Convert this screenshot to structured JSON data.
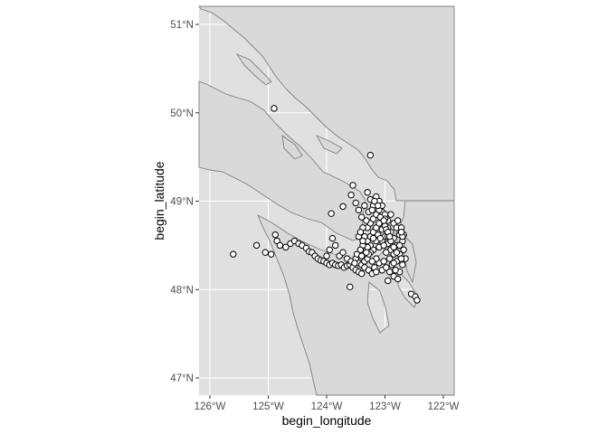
{
  "chart_data": {
    "type": "scatter",
    "xlabel": "begin_longitude",
    "ylabel": "begin_latitude",
    "xlim": [
      -126.2,
      -121.8
    ],
    "ylim": [
      46.8,
      51.2
    ],
    "x_ticks": [
      {
        "value": -126,
        "label": "126°W"
      },
      {
        "value": -125,
        "label": "125°W"
      },
      {
        "value": -124,
        "label": "124°W"
      },
      {
        "value": -123,
        "label": "123°W"
      },
      {
        "value": -122,
        "label": "122°W"
      }
    ],
    "y_ticks": [
      {
        "value": 47,
        "label": "47°N"
      },
      {
        "value": 48,
        "label": "48°N"
      },
      {
        "value": 49,
        "label": "49°N"
      },
      {
        "value": 50,
        "label": "50°N"
      },
      {
        "value": 51,
        "label": "51°N"
      }
    ],
    "grid": true,
    "basemap": "coastline outlines, grey land polygons",
    "points": [
      [
        -124.9,
        50.05
      ],
      [
        -123.25,
        49.52
      ],
      [
        -123.55,
        49.18
      ],
      [
        -125.6,
        48.4
      ],
      [
        -125.2,
        48.5
      ],
      [
        -125.05,
        48.42
      ],
      [
        -124.95,
        48.4
      ],
      [
        -124.88,
        48.62
      ],
      [
        -124.85,
        48.55
      ],
      [
        -124.8,
        48.5
      ],
      [
        -124.7,
        48.48
      ],
      [
        -124.62,
        48.52
      ],
      [
        -124.55,
        48.55
      ],
      [
        -124.48,
        48.52
      ],
      [
        -124.42,
        48.5
      ],
      [
        -124.35,
        48.47
      ],
      [
        -124.3,
        48.43
      ],
      [
        -124.25,
        48.42
      ],
      [
        -124.2,
        48.38
      ],
      [
        -124.15,
        48.35
      ],
      [
        -124.1,
        48.33
      ],
      [
        -124.05,
        48.32
      ],
      [
        -124.0,
        48.3
      ],
      [
        -123.95,
        48.28
      ],
      [
        -123.9,
        48.3
      ],
      [
        -123.85,
        48.28
      ],
      [
        -123.8,
        48.27
      ],
      [
        -123.75,
        48.28
      ],
      [
        -123.7,
        48.25
      ],
      [
        -123.65,
        48.27
      ],
      [
        -123.6,
        48.28
      ],
      [
        -123.55,
        48.25
      ],
      [
        -123.5,
        48.22
      ],
      [
        -123.45,
        48.2
      ],
      [
        -123.4,
        48.18
      ],
      [
        -123.6,
        48.03
      ],
      [
        -124.0,
        48.38
      ],
      [
        -123.95,
        48.45
      ],
      [
        -123.9,
        48.58
      ],
      [
        -123.85,
        48.5
      ],
      [
        -123.78,
        48.38
      ],
      [
        -123.72,
        48.42
      ],
      [
        -123.65,
        48.35
      ],
      [
        -123.58,
        48.32
      ],
      [
        -123.5,
        48.35
      ],
      [
        -123.45,
        48.3
      ],
      [
        -123.4,
        48.28
      ],
      [
        -123.35,
        48.32
      ],
      [
        -123.3,
        48.35
      ],
      [
        -123.92,
        48.86
      ],
      [
        -123.72,
        48.94
      ],
      [
        -123.58,
        49.07
      ],
      [
        -123.5,
        48.98
      ],
      [
        -123.45,
        48.9
      ],
      [
        -123.4,
        48.82
      ],
      [
        -123.35,
        48.95
      ],
      [
        -123.3,
        49.1
      ],
      [
        -123.25,
        49.02
      ],
      [
        -123.2,
        48.95
      ],
      [
        -123.15,
        49.05
      ],
      [
        -123.1,
        49.0
      ],
      [
        -123.05,
        48.88
      ],
      [
        -123.0,
        48.85
      ],
      [
        -122.95,
        48.78
      ],
      [
        -122.9,
        48.85
      ],
      [
        -122.85,
        48.75
      ],
      [
        -122.8,
        48.7
      ],
      [
        -122.75,
        48.62
      ],
      [
        -122.7,
        48.55
      ],
      [
        -122.68,
        48.45
      ],
      [
        -122.65,
        48.35
      ],
      [
        -122.7,
        48.28
      ],
      [
        -122.75,
        48.2
      ],
      [
        -122.85,
        48.15
      ],
      [
        -122.95,
        48.1
      ],
      [
        -123.05,
        48.22
      ],
      [
        -123.1,
        48.3
      ],
      [
        -123.15,
        48.35
      ],
      [
        -123.2,
        48.45
      ],
      [
        -123.25,
        48.5
      ],
      [
        -123.3,
        48.55
      ],
      [
        -123.25,
        48.6
      ],
      [
        -123.2,
        48.65
      ],
      [
        -123.15,
        48.7
      ],
      [
        -123.1,
        48.75
      ],
      [
        -123.05,
        48.68
      ],
      [
        -123.0,
        48.6
      ],
      [
        -122.95,
        48.52
      ],
      [
        -122.9,
        48.45
      ],
      [
        -122.85,
        48.4
      ],
      [
        -122.8,
        48.32
      ],
      [
        -122.75,
        48.4
      ],
      [
        -122.8,
        48.5
      ],
      [
        -122.85,
        48.58
      ],
      [
        -122.9,
        48.65
      ],
      [
        -122.95,
        48.7
      ],
      [
        -123.0,
        48.72
      ],
      [
        -123.05,
        48.55
      ],
      [
        -123.1,
        48.48
      ],
      [
        -123.15,
        48.55
      ],
      [
        -123.2,
        48.58
      ],
      [
        -123.25,
        48.42
      ],
      [
        -123.3,
        48.48
      ],
      [
        -123.35,
        48.6
      ],
      [
        -123.3,
        48.7
      ],
      [
        -123.25,
        48.75
      ],
      [
        -123.2,
        48.8
      ],
      [
        -123.15,
        48.85
      ],
      [
        -123.1,
        48.9
      ],
      [
        -123.05,
        48.95
      ],
      [
        -123.0,
        48.8
      ],
      [
        -122.95,
        48.6
      ],
      [
        -122.9,
        48.55
      ],
      [
        -122.85,
        48.48
      ],
      [
        -122.8,
        48.42
      ],
      [
        -122.72,
        48.35
      ],
      [
        -122.68,
        48.62
      ],
      [
        -122.72,
        48.7
      ],
      [
        -122.78,
        48.78
      ],
      [
        -123.12,
        48.62
      ],
      [
        -123.08,
        48.58
      ],
      [
        -123.02,
        48.5
      ],
      [
        -122.98,
        48.42
      ],
      [
        -122.92,
        48.35
      ],
      [
        -122.88,
        48.28
      ],
      [
        -122.82,
        48.22
      ],
      [
        -122.78,
        48.12
      ],
      [
        -123.18,
        48.25
      ],
      [
        -123.22,
        48.32
      ],
      [
        -123.28,
        48.4
      ],
      [
        -123.32,
        48.42
      ],
      [
        -123.38,
        48.5
      ],
      [
        -123.42,
        48.45
      ],
      [
        -123.48,
        48.4
      ],
      [
        -123.52,
        48.3
      ],
      [
        -123.4,
        48.38
      ],
      [
        -123.35,
        48.25
      ],
      [
        -123.28,
        48.22
      ],
      [
        -123.22,
        48.18
      ],
      [
        -123.15,
        48.2
      ],
      [
        -123.02,
        48.32
      ],
      [
        -122.98,
        48.25
      ],
      [
        -122.92,
        48.2
      ],
      [
        -122.85,
        48.3
      ],
      [
        -122.75,
        48.5
      ],
      [
        -122.7,
        48.6
      ],
      [
        -122.72,
        48.65
      ],
      [
        -123.38,
        48.7
      ],
      [
        -123.32,
        48.78
      ],
      [
        -123.28,
        48.88
      ],
      [
        -123.22,
        48.9
      ],
      [
        -123.18,
        49.0
      ],
      [
        -123.12,
        48.95
      ],
      [
        -123.08,
        48.82
      ],
      [
        -123.02,
        48.78
      ],
      [
        -122.98,
        48.68
      ],
      [
        -122.95,
        48.65
      ],
      [
        -122.92,
        48.6
      ],
      [
        -123.45,
        48.6
      ],
      [
        -123.42,
        48.65
      ],
      [
        -123.38,
        48.55
      ],
      [
        -122.55,
        47.95
      ],
      [
        -122.48,
        47.92
      ],
      [
        -122.45,
        47.88
      ]
    ]
  }
}
